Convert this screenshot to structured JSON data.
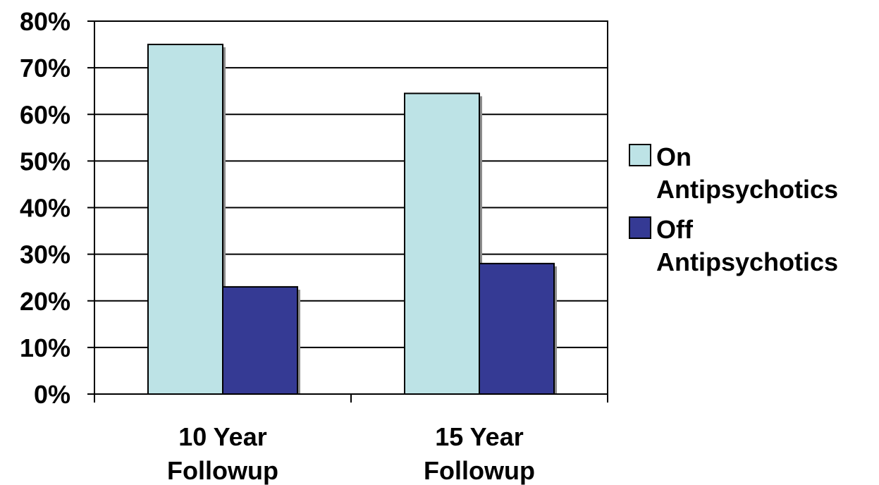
{
  "chart_data": {
    "type": "bar",
    "title": "",
    "xlabel": "",
    "ylabel": "",
    "categories": [
      [
        "10 Year",
        "Followup"
      ],
      [
        "15 Year",
        "Followup"
      ]
    ],
    "series": [
      {
        "name": [
          "On",
          "Antipsychotics"
        ],
        "values": [
          0.75,
          0.645
        ],
        "color": "#bde3e6"
      },
      {
        "name": [
          "Off",
          "Antipsychotics"
        ],
        "values": [
          0.23,
          0.28
        ],
        "color": "#353a94"
      }
    ],
    "ylim": [
      0,
      0.8
    ],
    "yticks": [
      0,
      0.1,
      0.2,
      0.3,
      0.4,
      0.5,
      0.6,
      0.7,
      0.8
    ],
    "ytick_labels": [
      "0%",
      "10%",
      "20%",
      "30%",
      "40%",
      "50%",
      "60%",
      "70%",
      "80%"
    ],
    "grid": true,
    "legend_position": "right",
    "bar_shadow": true
  }
}
